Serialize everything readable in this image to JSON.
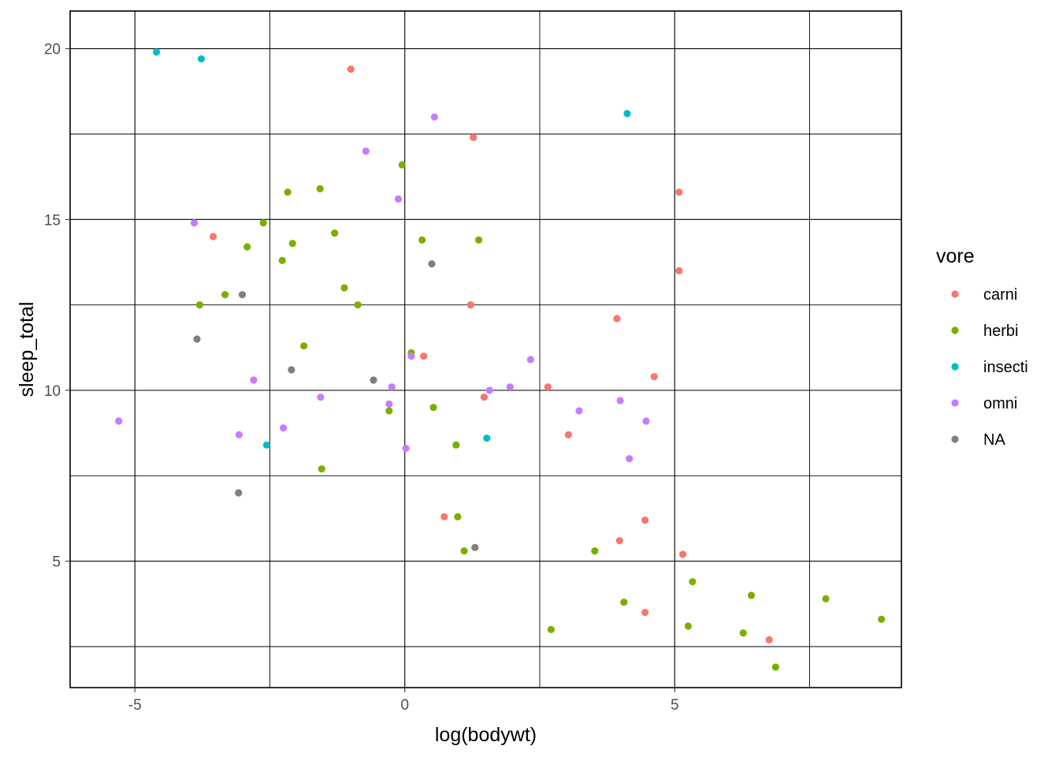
{
  "chart_data": {
    "type": "scatter",
    "xlabel": "log(bodywt)",
    "ylabel": "sleep_total",
    "xlim": [
      -6.2,
      9.2
    ],
    "ylim": [
      1.3,
      21.1
    ],
    "x_ticks": [
      -5,
      0,
      5
    ],
    "x_minor": [
      -7.5,
      -2.5,
      2.5,
      7.5
    ],
    "y_ticks": [
      5,
      10,
      15,
      20
    ],
    "y_minor": [
      2.5,
      7.5,
      12.5,
      17.5
    ],
    "grid": true,
    "legend": {
      "title": "vore",
      "placement": "right",
      "entries": [
        "carni",
        "herbi",
        "insecti",
        "omni",
        "NA"
      ]
    },
    "series": [
      {
        "name": "carni",
        "color": "#F8766D",
        "points": [
          [
            -1.0,
            19.4
          ],
          [
            1.27,
            17.4
          ],
          [
            5.08,
            15.8
          ],
          [
            -3.55,
            14.5
          ],
          [
            5.08,
            13.5
          ],
          [
            1.22,
            12.5
          ],
          [
            3.93,
            12.1
          ],
          [
            0.35,
            11.0
          ],
          [
            4.62,
            10.4
          ],
          [
            2.65,
            10.1
          ],
          [
            1.47,
            9.8
          ],
          [
            3.03,
            8.7
          ],
          [
            0.73,
            6.3
          ],
          [
            4.45,
            6.2
          ],
          [
            3.98,
            5.6
          ],
          [
            5.15,
            5.2
          ],
          [
            4.45,
            3.5
          ],
          [
            6.75,
            2.7
          ]
        ]
      },
      {
        "name": "herbi",
        "color": "#7CAE00",
        "points": [
          [
            -0.05,
            16.6
          ],
          [
            -1.57,
            15.9
          ],
          [
            -2.17,
            15.8
          ],
          [
            -2.62,
            14.9
          ],
          [
            -1.3,
            14.6
          ],
          [
            0.32,
            14.4
          ],
          [
            1.37,
            14.4
          ],
          [
            -2.08,
            14.3
          ],
          [
            -2.92,
            14.2
          ],
          [
            -2.27,
            13.8
          ],
          [
            -1.12,
            13.0
          ],
          [
            -3.33,
            12.8
          ],
          [
            -3.8,
            12.5
          ],
          [
            -0.87,
            12.5
          ],
          [
            -1.87,
            11.3
          ],
          [
            0.12,
            11.1
          ],
          [
            0.53,
            9.5
          ],
          [
            -0.29,
            9.4
          ],
          [
            0.95,
            8.4
          ],
          [
            -1.54,
            7.7
          ],
          [
            0.98,
            6.3
          ],
          [
            1.1,
            5.3
          ],
          [
            3.52,
            5.3
          ],
          [
            5.33,
            4.4
          ],
          [
            6.42,
            4.0
          ],
          [
            7.8,
            3.9
          ],
          [
            4.06,
            3.8
          ],
          [
            8.83,
            3.3
          ],
          [
            5.25,
            3.1
          ],
          [
            2.71,
            3.0
          ],
          [
            6.27,
            2.9
          ],
          [
            6.87,
            1.9
          ]
        ]
      },
      {
        "name": "insecti",
        "color": "#00BFC4",
        "points": [
          [
            -4.6,
            19.9
          ],
          [
            -3.77,
            19.7
          ],
          [
            4.12,
            18.1
          ],
          [
            -2.56,
            8.4
          ],
          [
            1.52,
            8.6
          ]
        ]
      },
      {
        "name": "omni",
        "color": "#C77CFF",
        "points": [
          [
            0.55,
            18.0
          ],
          [
            -0.72,
            17.0
          ],
          [
            -0.12,
            15.6
          ],
          [
            -3.9,
            14.9
          ],
          [
            2.33,
            10.9
          ],
          [
            0.12,
            11.0
          ],
          [
            -2.8,
            10.3
          ],
          [
            1.95,
            10.1
          ],
          [
            -0.24,
            10.1
          ],
          [
            1.57,
            10.0
          ],
          [
            -1.56,
            9.8
          ],
          [
            3.99,
            9.7
          ],
          [
            -0.29,
            9.6
          ],
          [
            3.23,
            9.4
          ],
          [
            4.47,
            9.1
          ],
          [
            -5.3,
            9.1
          ],
          [
            -2.25,
            8.9
          ],
          [
            -3.07,
            8.7
          ],
          [
            0.02,
            8.3
          ],
          [
            4.16,
            8.0
          ]
        ]
      },
      {
        "name": "NA",
        "color": "#7F7F7F",
        "points": [
          [
            0.5,
            13.7
          ],
          [
            -3.01,
            12.8
          ],
          [
            -3.85,
            11.5
          ],
          [
            -2.1,
            10.6
          ],
          [
            -0.58,
            10.3
          ],
          [
            -3.08,
            7.0
          ],
          [
            1.3,
            5.4
          ]
        ]
      }
    ]
  }
}
